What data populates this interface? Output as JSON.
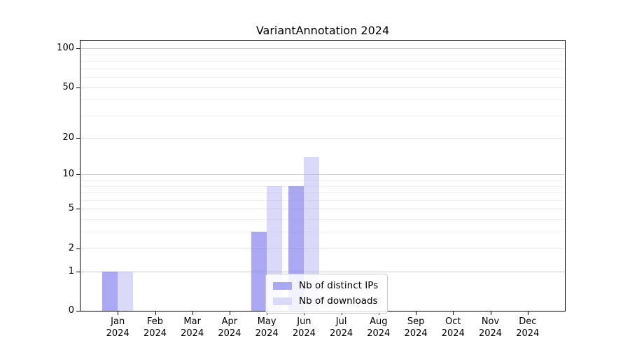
{
  "title": "VariantAnnotation 2024",
  "chart_data": {
    "type": "bar",
    "title": "VariantAnnotation 2024",
    "categories": [
      "Jan",
      "Feb",
      "Mar",
      "Apr",
      "May",
      "Jun",
      "Jul",
      "Aug",
      "Sep",
      "Oct",
      "Nov",
      "Dec"
    ],
    "category_year": "2024",
    "series": [
      {
        "name": "Nb of distinct IPs",
        "color": "#aaa7f3",
        "bar_color": "rgba(134,130,238,0.70)",
        "values": [
          1,
          0,
          0,
          0,
          3,
          8,
          0,
          0,
          0,
          0,
          0,
          0
        ]
      },
      {
        "name": "Nb of downloads",
        "color": "#dbd9f9",
        "bar_color": "rgba(175,171,242,0.45)",
        "values": [
          1,
          0,
          0,
          0,
          8,
          14,
          0,
          0,
          0,
          0,
          0,
          0
        ]
      }
    ],
    "xlabel": "",
    "ylabel": "",
    "y_scale": "log1p",
    "ylim": [
      0,
      117
    ],
    "y_ticks": [
      0,
      1,
      2,
      5,
      10,
      20,
      50,
      100
    ],
    "y_gridlines": [
      1,
      2,
      3,
      4,
      5,
      6,
      7,
      8,
      9,
      10,
      20,
      30,
      40,
      50,
      60,
      70,
      80,
      90,
      100
    ],
    "grid": true,
    "legend": {
      "position": "inside-bottom-center"
    }
  },
  "colors": {
    "axis": "#000000",
    "grid_major": "#c9c9c9",
    "grid_labeled": "#e4e4e4",
    "grid_minor": "#f0f0f0",
    "background": "#ffffff"
  }
}
